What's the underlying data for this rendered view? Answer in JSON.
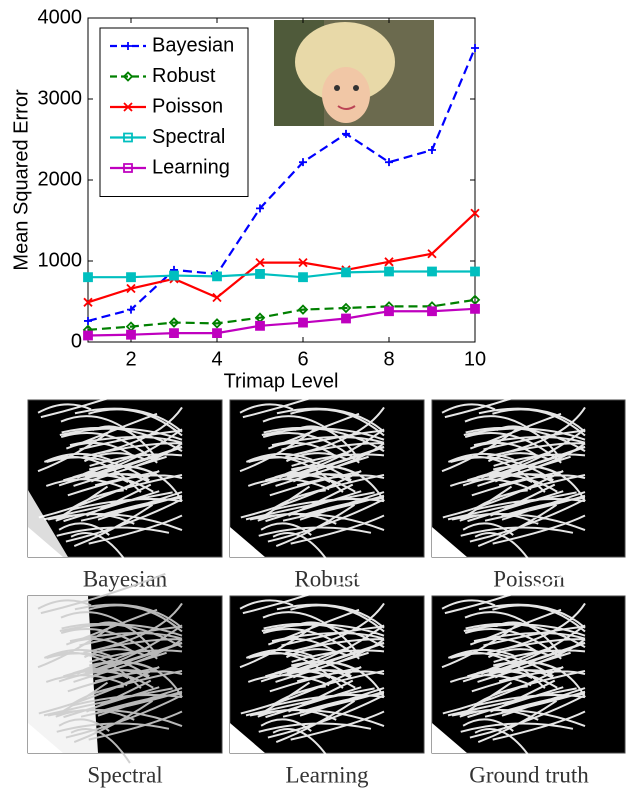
{
  "chart_data": {
    "type": "line",
    "xlabel": "Trimap Level",
    "ylabel": "Mean Squared Error",
    "x": [
      1,
      2,
      3,
      4,
      5,
      6,
      7,
      8,
      9,
      10
    ],
    "xlim": [
      1,
      10
    ],
    "xticks": [
      2,
      4,
      6,
      8,
      10
    ],
    "ylim": [
      0,
      4000
    ],
    "yticks": [
      0,
      1000,
      2000,
      3000,
      4000
    ],
    "grid": false,
    "legend": "upper left",
    "series": [
      {
        "name": "Bayesian",
        "color": "#0000ff",
        "dash": true,
        "marker": "plus",
        "values": [
          260,
          400,
          890,
          840,
          1650,
          2220,
          2570,
          2220,
          2370,
          3630
        ]
      },
      {
        "name": "Robust",
        "color": "#008000",
        "dash": true,
        "marker": "diamond",
        "values": [
          150,
          190,
          240,
          230,
          300,
          400,
          420,
          440,
          440,
          520
        ]
      },
      {
        "name": "Poisson",
        "color": "#ff0000",
        "dash": false,
        "marker": "x",
        "values": [
          490,
          660,
          780,
          550,
          980,
          980,
          890,
          990,
          1090,
          1590
        ]
      },
      {
        "name": "Spectral",
        "color": "#00bfbf",
        "dash": false,
        "marker": "square",
        "values": [
          800,
          800,
          820,
          810,
          840,
          800,
          860,
          870,
          870,
          870
        ]
      },
      {
        "name": "Learning",
        "color": "#bf00bf",
        "dash": false,
        "marker": "square",
        "values": [
          80,
          90,
          110,
          110,
          200,
          240,
          290,
          380,
          380,
          410
        ]
      }
    ]
  },
  "panel_captions": [
    "Bayesian",
    "Robust",
    "Poisson",
    "Spectral",
    "Learning",
    "Ground truth"
  ]
}
